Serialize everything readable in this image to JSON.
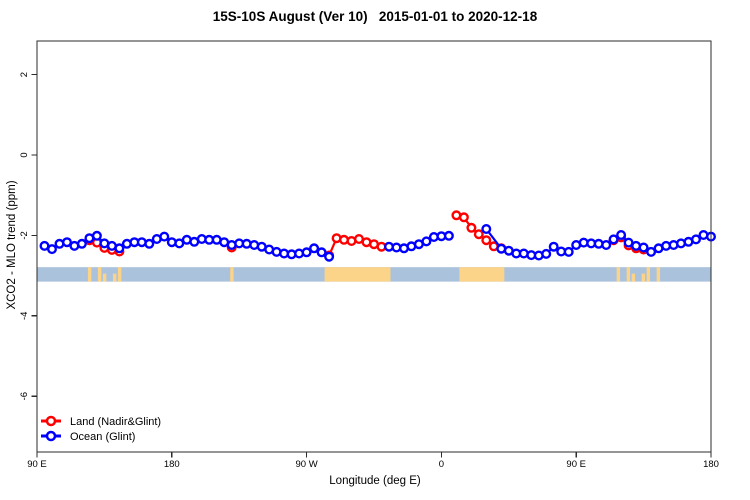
{
  "title": "15S-10S August (Ver 10)   2015-01-01 to 2020-12-18",
  "chart_data": {
    "type": "scatter",
    "title": "15S-10S August (Ver 10)   2015-01-01 to 2020-12-18",
    "xlabel": "Longitude (deg E)",
    "ylabel": "XCO2 - MLO trend (ppm)",
    "x_axis": {
      "lim_deg": [
        90,
        540
      ],
      "ticks": [
        {
          "deg": 90,
          "label": "90 E"
        },
        {
          "deg": 180,
          "label": "180"
        },
        {
          "deg": 270,
          "label": "90 W"
        },
        {
          "deg": 360,
          "label": "0"
        },
        {
          "deg": 450,
          "label": "90 E"
        },
        {
          "deg": 540,
          "label": "180"
        }
      ]
    },
    "y_axis": {
      "lim_ppm": [
        -7.4,
        2.85
      ],
      "ticks": [
        {
          "ppm": 2,
          "label": "2"
        },
        {
          "ppm": 0,
          "label": "0"
        },
        {
          "ppm": -2,
          "label": "-2"
        },
        {
          "ppm": -4,
          "label": "-4"
        },
        {
          "ppm": -6,
          "label": "-6"
        }
      ]
    },
    "grid": false,
    "legend": {
      "position": "bottom-left",
      "entries": [
        {
          "label": "Land (Nadir&Glint)",
          "color": "#ff0000"
        },
        {
          "label": "Ocean (Glint)",
          "color": "#0000ff"
        }
      ]
    },
    "surface_band": {
      "center_ppm": -2.97,
      "half_height_ppm": 0.18,
      "ocean_color": "#abc2dd",
      "land_color": "#fbd389",
      "land_patches_deg": [
        {
          "from": 124,
          "to": 146,
          "style": "speckled"
        },
        {
          "from": 219,
          "to": 222,
          "style": "speckled"
        },
        {
          "from": 282,
          "to": 326,
          "style": "solid"
        },
        {
          "from": 372,
          "to": 402,
          "style": "solid"
        },
        {
          "from": 477,
          "to": 506,
          "style": "speckled"
        }
      ]
    },
    "series": [
      {
        "name": "Land (Nadir&Glint)",
        "color": "#ff0000",
        "gap_threshold_deg": 8,
        "points": [
          [
            125,
            -2.12
          ],
          [
            130,
            -2.18
          ],
          [
            135,
            -2.31
          ],
          [
            140,
            -2.36
          ],
          [
            145,
            -2.4
          ],
          [
            220,
            -2.3
          ],
          [
            285,
            -2.5
          ],
          [
            290,
            -2.07
          ],
          [
            295,
            -2.11
          ],
          [
            300,
            -2.14
          ],
          [
            305,
            -2.09
          ],
          [
            310,
            -2.17
          ],
          [
            315,
            -2.22
          ],
          [
            320,
            -2.28
          ],
          [
            370,
            -1.5
          ],
          [
            375,
            -1.55
          ],
          [
            380,
            -1.81
          ],
          [
            385,
            -1.97
          ],
          [
            390,
            -2.12
          ],
          [
            395,
            -2.27
          ],
          [
            400,
            -2.32
          ],
          [
            475,
            -2.12
          ],
          [
            480,
            -2.05
          ],
          [
            485,
            -2.25
          ],
          [
            490,
            -2.32
          ],
          [
            495,
            -2.35
          ]
        ]
      },
      {
        "name": "Ocean (Glint)",
        "color": "#0000ff",
        "gap_threshold_deg": 12,
        "points": [
          [
            95,
            -2.26
          ],
          [
            100,
            -2.34
          ],
          [
            105,
            -2.21
          ],
          [
            110,
            -2.17
          ],
          [
            115,
            -2.26
          ],
          [
            120,
            -2.21
          ],
          [
            125,
            -2.07
          ],
          [
            130,
            -2.01
          ],
          [
            135,
            -2.2
          ],
          [
            140,
            -2.26
          ],
          [
            145,
            -2.32
          ],
          [
            150,
            -2.21
          ],
          [
            155,
            -2.17
          ],
          [
            160,
            -2.17
          ],
          [
            165,
            -2.21
          ],
          [
            170,
            -2.09
          ],
          [
            175,
            -2.03
          ],
          [
            180,
            -2.17
          ],
          [
            185,
            -2.2
          ],
          [
            190,
            -2.11
          ],
          [
            195,
            -2.16
          ],
          [
            200,
            -2.09
          ],
          [
            205,
            -2.11
          ],
          [
            210,
            -2.11
          ],
          [
            215,
            -2.17
          ],
          [
            220,
            -2.24
          ],
          [
            225,
            -2.2
          ],
          [
            230,
            -2.21
          ],
          [
            235,
            -2.24
          ],
          [
            240,
            -2.28
          ],
          [
            245,
            -2.35
          ],
          [
            250,
            -2.41
          ],
          [
            255,
            -2.45
          ],
          [
            260,
            -2.47
          ],
          [
            265,
            -2.45
          ],
          [
            270,
            -2.42
          ],
          [
            275,
            -2.32
          ],
          [
            280,
            -2.42
          ],
          [
            285,
            -2.53
          ],
          [
            325,
            -2.28
          ],
          [
            330,
            -2.3
          ],
          [
            335,
            -2.32
          ],
          [
            340,
            -2.27
          ],
          [
            345,
            -2.22
          ],
          [
            350,
            -2.15
          ],
          [
            355,
            -2.04
          ],
          [
            360,
            -2.02
          ],
          [
            365,
            -2.01
          ],
          [
            390,
            -1.84
          ],
          [
            400,
            -2.33
          ],
          [
            405,
            -2.38
          ],
          [
            410,
            -2.45
          ],
          [
            415,
            -2.45
          ],
          [
            420,
            -2.49
          ],
          [
            425,
            -2.5
          ],
          [
            430,
            -2.46
          ],
          [
            435,
            -2.28
          ],
          [
            440,
            -2.4
          ],
          [
            445,
            -2.41
          ],
          [
            450,
            -2.24
          ],
          [
            455,
            -2.18
          ],
          [
            460,
            -2.2
          ],
          [
            465,
            -2.21
          ],
          [
            470,
            -2.24
          ],
          [
            475,
            -2.1
          ],
          [
            480,
            -1.99
          ],
          [
            485,
            -2.18
          ],
          [
            490,
            -2.26
          ],
          [
            495,
            -2.3
          ],
          [
            500,
            -2.41
          ],
          [
            505,
            -2.32
          ],
          [
            510,
            -2.26
          ],
          [
            515,
            -2.24
          ],
          [
            520,
            -2.2
          ],
          [
            525,
            -2.16
          ],
          [
            530,
            -2.1
          ],
          [
            535,
            -1.99
          ],
          [
            540,
            -2.03
          ]
        ]
      }
    ]
  }
}
